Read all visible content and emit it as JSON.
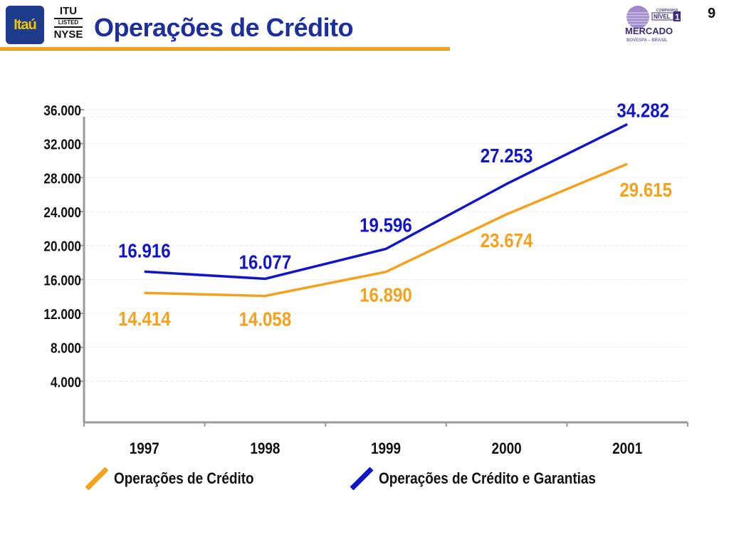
{
  "header": {
    "title": "Operações de Crédito",
    "page_number": "9",
    "logo_itau": "Itaú",
    "nyse_badge": {
      "line1": "ITU",
      "line2": "LISTED",
      "line3": "NYSE"
    },
    "mercado_logo": {
      "line1": "COMPANHIA",
      "line2": "NÍVEL",
      "line3": "1",
      "line4": "MERCADO",
      "line5": "BOVESPA – BRASIL"
    }
  },
  "colors": {
    "title": "#1d2f9a",
    "rule": "#f2a516",
    "series_credito": "#f5a11c",
    "series_garantias": "#1015c8"
  },
  "chart_data": {
    "type": "line",
    "categories": [
      "1997",
      "1998",
      "1999",
      "2000",
      "2001"
    ],
    "y_ticks": [
      "4.000",
      "8.000",
      "12.000",
      "16.000",
      "20.000",
      "24.000",
      "28.000",
      "32.000",
      "36.000"
    ],
    "ylim": [
      0,
      36000
    ],
    "grid": true,
    "legend_position": "bottom",
    "series": [
      {
        "name": "Operações de Crédito",
        "values": [
          14414,
          14058,
          16890,
          23674,
          29615
        ],
        "labels": [
          "14.414",
          "14.058",
          "16.890",
          "23.674",
          "29.615"
        ],
        "color": "#f5a11c"
      },
      {
        "name": "Operações de Crédito e Garantias",
        "values": [
          16916,
          16077,
          19596,
          27253,
          34282
        ],
        "labels": [
          "16.916",
          "16.077",
          "19.596",
          "27.253",
          "34.282"
        ],
        "color": "#1015c8"
      }
    ]
  }
}
